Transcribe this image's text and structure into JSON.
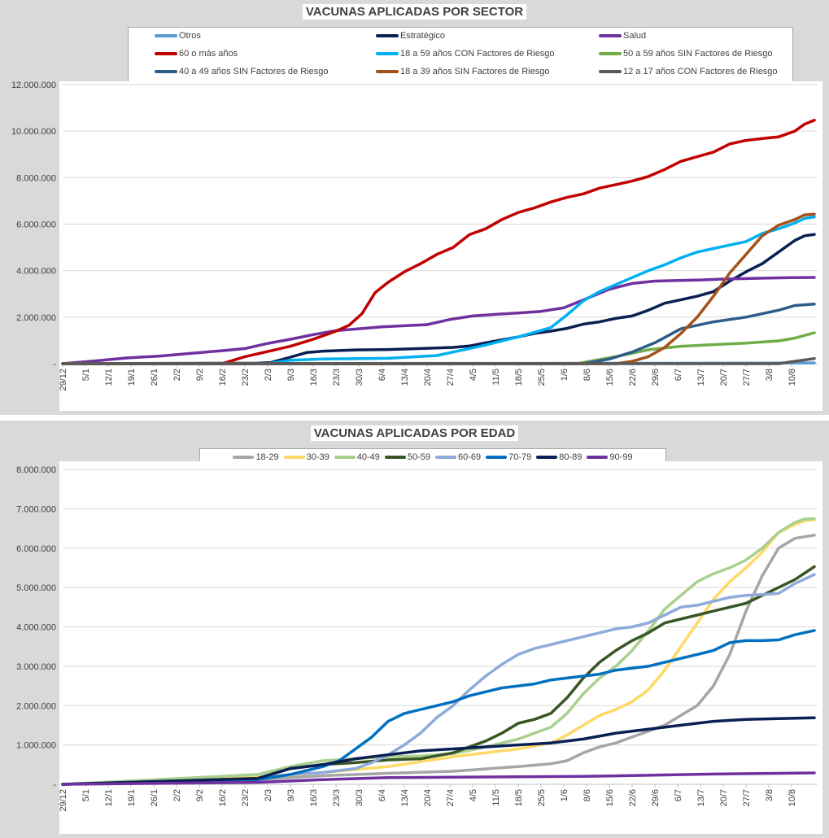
{
  "chart_data": [
    {
      "type": "line",
      "title": "VACUNAS APLICADAS POR SECTOR",
      "ylim": [
        0,
        12000000
      ],
      "yticks": [
        0,
        2000000,
        4000000,
        6000000,
        8000000,
        10000000,
        12000000
      ],
      "ytick_labels": [
        "-",
        "2.000.000",
        "4.000.000",
        "6.000.000",
        "8.000.000",
        "10.000.000",
        "12.000.000"
      ],
      "x_tick_labels": [
        "29/12",
        "5/1",
        "12/1",
        "19/1",
        "26/1",
        "2/2",
        "9/2",
        "16/2",
        "23/2",
        "2/3",
        "9/3",
        "16/3",
        "23/3",
        "30/3",
        "6/4",
        "13/4",
        "20/4",
        "27/4",
        "4/5",
        "11/5",
        "18/5",
        "25/5",
        "1/6",
        "8/6",
        "15/6",
        "22/6",
        "29/6",
        "6/7",
        "13/7",
        "20/7",
        "27/7",
        "3/8",
        "10/8"
      ],
      "x_unit": "days since 29/12",
      "grid": true,
      "legend_position": "top",
      "series": [
        {
          "name": "Otros",
          "color": "#5b9bd5",
          "x": [
            0,
            200,
            231
          ],
          "values": [
            0,
            20000,
            30000
          ]
        },
        {
          "name": "Estratégico",
          "color": "#0a1f52",
          "x": [
            0,
            60,
            64,
            70,
            75,
            80,
            90,
            100,
            110,
            120,
            125,
            130,
            140,
            145,
            150,
            155,
            160,
            165,
            170,
            175,
            180,
            185,
            190,
            195,
            200,
            205,
            210,
            215,
            220,
            225,
            228,
            231
          ],
          "values": [
            0,
            20000,
            50000,
            280000,
            480000,
            540000,
            590000,
            610000,
            650000,
            700000,
            760000,
            900000,
            1150000,
            1300000,
            1400000,
            1520000,
            1700000,
            1800000,
            1950000,
            2050000,
            2300000,
            2600000,
            2750000,
            2900000,
            3100000,
            3550000,
            3950000,
            4300000,
            4800000,
            5300000,
            5500000,
            5560000
          ]
        },
        {
          "name": "Salud",
          "color": "#7030a0",
          "x": [
            0,
            10,
            20,
            30,
            40,
            50,
            56,
            63,
            70,
            77,
            84,
            91,
            98,
            105,
            112,
            119,
            126,
            133,
            140,
            147,
            154,
            161,
            168,
            175,
            182,
            189,
            196,
            203,
            210,
            217,
            224,
            231
          ],
          "values": [
            0,
            120000,
            250000,
            330000,
            450000,
            570000,
            650000,
            870000,
            1050000,
            1250000,
            1420000,
            1500000,
            1580000,
            1630000,
            1680000,
            1900000,
            2050000,
            2120000,
            2180000,
            2250000,
            2400000,
            2800000,
            3200000,
            3450000,
            3550000,
            3580000,
            3600000,
            3640000,
            3660000,
            3680000,
            3700000,
            3710000
          ]
        },
        {
          "name": "60 o más años",
          "color": "#c00000",
          "x": [
            0,
            49,
            56,
            63,
            70,
            77,
            84,
            88,
            92,
            96,
            100,
            105,
            110,
            115,
            120,
            125,
            130,
            135,
            140,
            145,
            150,
            155,
            160,
            165,
            170,
            175,
            180,
            185,
            190,
            195,
            200,
            205,
            210,
            215,
            220,
            225,
            228,
            231
          ],
          "values": [
            0,
            0,
            300000,
            520000,
            750000,
            1050000,
            1400000,
            1650000,
            2150000,
            3050000,
            3500000,
            3950000,
            4300000,
            4700000,
            5000000,
            5550000,
            5800000,
            6200000,
            6500000,
            6700000,
            6950000,
            7150000,
            7300000,
            7550000,
            7700000,
            7850000,
            8050000,
            8350000,
            8700000,
            8900000,
            9100000,
            9450000,
            9600000,
            9680000,
            9750000,
            10000000,
            10300000,
            10470000
          ]
        },
        {
          "name": "18 a 59 años CON Factores de Riesgo",
          "color": "#00b0f0",
          "x": [
            0,
            63,
            70,
            80,
            100,
            115,
            120,
            125,
            130,
            140,
            145,
            150,
            155,
            160,
            165,
            170,
            175,
            180,
            185,
            190,
            195,
            200,
            205,
            210,
            215,
            220,
            225,
            228,
            231
          ],
          "values": [
            0,
            0,
            150000,
            200000,
            230000,
            350000,
            500000,
            650000,
            800000,
            1150000,
            1350000,
            1550000,
            2100000,
            2700000,
            3100000,
            3400000,
            3700000,
            4000000,
            4250000,
            4550000,
            4800000,
            4950000,
            5100000,
            5250000,
            5600000,
            5800000,
            6050000,
            6250000,
            6310000
          ]
        },
        {
          "name": "50 a 59 años SIN Factores de Riesgo",
          "color": "#70ad47",
          "x": [
            0,
            158,
            170,
            180,
            190,
            200,
            210,
            220,
            225,
            231
          ],
          "values": [
            0,
            0,
            300000,
            600000,
            750000,
            820000,
            880000,
            980000,
            1100000,
            1330000
          ]
        },
        {
          "name": "40 a 49 años SIN Factores de Riesgo",
          "color": "#2e5c8a",
          "x": [
            0,
            160,
            168,
            175,
            182,
            190,
            200,
            210,
            220,
            225,
            231
          ],
          "values": [
            0,
            0,
            200000,
            500000,
            900000,
            1500000,
            1800000,
            2000000,
            2300000,
            2500000,
            2560000
          ]
        },
        {
          "name": "18 a 39 años SIN Factores de Riesgo",
          "color": "#a5521a",
          "x": [
            0,
            170,
            175,
            180,
            185,
            190,
            195,
            200,
            205,
            210,
            215,
            220,
            225,
            228,
            231
          ],
          "values": [
            0,
            0,
            100000,
            300000,
            700000,
            1300000,
            2000000,
            2900000,
            3900000,
            4700000,
            5500000,
            5950000,
            6200000,
            6400000,
            6430000
          ]
        },
        {
          "name": "12 a 17 años CON Factores de Riesgo",
          "color": "#595959",
          "x": [
            0,
            220,
            225,
            231
          ],
          "values": [
            0,
            0,
            100000,
            220000
          ]
        }
      ]
    },
    {
      "type": "line",
      "title": "VACUNAS APLICADAS POR EDAD",
      "ylim": [
        0,
        8000000
      ],
      "yticks": [
        0,
        1000000,
        2000000,
        3000000,
        4000000,
        5000000,
        6000000,
        7000000,
        8000000
      ],
      "ytick_labels": [
        "-",
        "1.000.000",
        "2.000.000",
        "3.000.000",
        "4.000.000",
        "5.000.000",
        "6.000.000",
        "7.000.000",
        "8.000.000"
      ],
      "x_tick_labels": [
        "29/12",
        "5/1",
        "12/1",
        "19/1",
        "26/1",
        "2/2",
        "9/2",
        "16/2",
        "23/2",
        "2/3",
        "9/3",
        "16/3",
        "23/3",
        "30/3",
        "6/4",
        "13/4",
        "20/4",
        "27/4",
        "4/5",
        "11/5",
        "18/5",
        "25/5",
        "1/6",
        "8/6",
        "15/6",
        "22/6",
        "29/6",
        "6/7",
        "13/7",
        "20/7",
        "27/7",
        "3/8",
        "10/8"
      ],
      "x_unit": "days since 29/12",
      "grid": true,
      "legend_position": "top",
      "series": [
        {
          "name": "18-29",
          "color": "#a6a6a6",
          "x": [
            0,
            60,
            80,
            100,
            120,
            140,
            150,
            155,
            160,
            165,
            170,
            175,
            180,
            185,
            190,
            195,
            200,
            205,
            210,
            215,
            220,
            225,
            231
          ],
          "values": [
            0,
            120000,
            220000,
            280000,
            330000,
            450000,
            520000,
            600000,
            800000,
            950000,
            1050000,
            1200000,
            1350000,
            1500000,
            1750000,
            2000000,
            2500000,
            3300000,
            4400000,
            5300000,
            6000000,
            6250000,
            6330000
          ]
        },
        {
          "name": "30-39",
          "color": "#ffd966",
          "x": [
            0,
            60,
            80,
            100,
            120,
            140,
            150,
            155,
            160,
            165,
            170,
            175,
            180,
            185,
            190,
            195,
            200,
            205,
            210,
            215,
            220,
            225,
            228,
            231
          ],
          "values": [
            0,
            180000,
            300000,
            450000,
            700000,
            900000,
            1050000,
            1250000,
            1500000,
            1750000,
            1900000,
            2100000,
            2400000,
            2900000,
            3500000,
            4100000,
            4700000,
            5150000,
            5500000,
            5900000,
            6400000,
            6600000,
            6700000,
            6720000
          ]
        },
        {
          "name": "40-49",
          "color": "#a9d08e",
          "x": [
            0,
            60,
            70,
            80,
            90,
            100,
            110,
            120,
            130,
            140,
            145,
            150,
            155,
            160,
            165,
            170,
            175,
            180,
            185,
            190,
            195,
            200,
            205,
            210,
            215,
            220,
            225,
            228,
            231
          ],
          "values": [
            0,
            250000,
            450000,
            600000,
            650000,
            700000,
            720000,
            780000,
            950000,
            1150000,
            1300000,
            1450000,
            1800000,
            2300000,
            2700000,
            3000000,
            3400000,
            3900000,
            4450000,
            4800000,
            5150000,
            5350000,
            5500000,
            5700000,
            6000000,
            6400000,
            6650000,
            6740000,
            6750000
          ]
        },
        {
          "name": "50-59",
          "color": "#375623",
          "x": [
            0,
            60,
            70,
            80,
            90,
            100,
            110,
            120,
            125,
            130,
            135,
            140,
            145,
            150,
            155,
            160,
            165,
            170,
            175,
            180,
            185,
            190,
            195,
            200,
            205,
            210,
            215,
            220,
            225,
            231
          ],
          "values": [
            0,
            150000,
            400000,
            500000,
            550000,
            620000,
            650000,
            800000,
            950000,
            1100000,
            1300000,
            1550000,
            1650000,
            1800000,
            2200000,
            2700000,
            3100000,
            3400000,
            3650000,
            3850000,
            4100000,
            4200000,
            4300000,
            4400000,
            4500000,
            4600000,
            4800000,
            5000000,
            5200000,
            5530000
          ]
        },
        {
          "name": "60-69",
          "color": "#8eaadb",
          "x": [
            0,
            60,
            70,
            80,
            90,
            95,
            100,
            105,
            110,
            115,
            120,
            125,
            130,
            135,
            140,
            145,
            150,
            155,
            160,
            165,
            170,
            175,
            180,
            185,
            190,
            195,
            200,
            205,
            210,
            215,
            220,
            225,
            231
          ],
          "values": [
            0,
            150000,
            250000,
            300000,
            400000,
            550000,
            750000,
            1000000,
            1300000,
            1700000,
            2000000,
            2400000,
            2750000,
            3050000,
            3300000,
            3450000,
            3550000,
            3650000,
            3750000,
            3850000,
            3950000,
            4000000,
            4100000,
            4300000,
            4500000,
            4550000,
            4650000,
            4750000,
            4800000,
            4820000,
            4850000,
            5100000,
            5330000
          ]
        },
        {
          "name": "70-79",
          "color": "#0070c0",
          "x": [
            0,
            60,
            70,
            80,
            85,
            90,
            95,
            100,
            105,
            110,
            115,
            120,
            125,
            130,
            135,
            140,
            145,
            150,
            155,
            160,
            165,
            170,
            175,
            180,
            185,
            190,
            195,
            200,
            205,
            210,
            215,
            220,
            225,
            231
          ],
          "values": [
            0,
            120000,
            250000,
            450000,
            600000,
            900000,
            1200000,
            1600000,
            1800000,
            1900000,
            2000000,
            2100000,
            2250000,
            2350000,
            2450000,
            2500000,
            2550000,
            2650000,
            2700000,
            2750000,
            2800000,
            2900000,
            2950000,
            3000000,
            3100000,
            3200000,
            3300000,
            3400000,
            3600000,
            3650000,
            3650000,
            3670000,
            3800000,
            3910000
          ]
        },
        {
          "name": "80-89",
          "color": "#0a1f52",
          "x": [
            0,
            60,
            70,
            80,
            90,
            100,
            110,
            120,
            130,
            140,
            150,
            160,
            170,
            180,
            190,
            200,
            210,
            220,
            231
          ],
          "values": [
            0,
            150000,
            400000,
            500000,
            650000,
            750000,
            850000,
            900000,
            950000,
            1000000,
            1050000,
            1150000,
            1300000,
            1400000,
            1500000,
            1600000,
            1650000,
            1670000,
            1690000
          ]
        },
        {
          "name": "90-99",
          "color": "#7030a0",
          "x": [
            0,
            60,
            80,
            100,
            120,
            140,
            160,
            180,
            200,
            220,
            231
          ],
          "values": [
            0,
            50000,
            120000,
            170000,
            180000,
            190000,
            200000,
            230000,
            260000,
            280000,
            290000
          ]
        }
      ]
    }
  ]
}
